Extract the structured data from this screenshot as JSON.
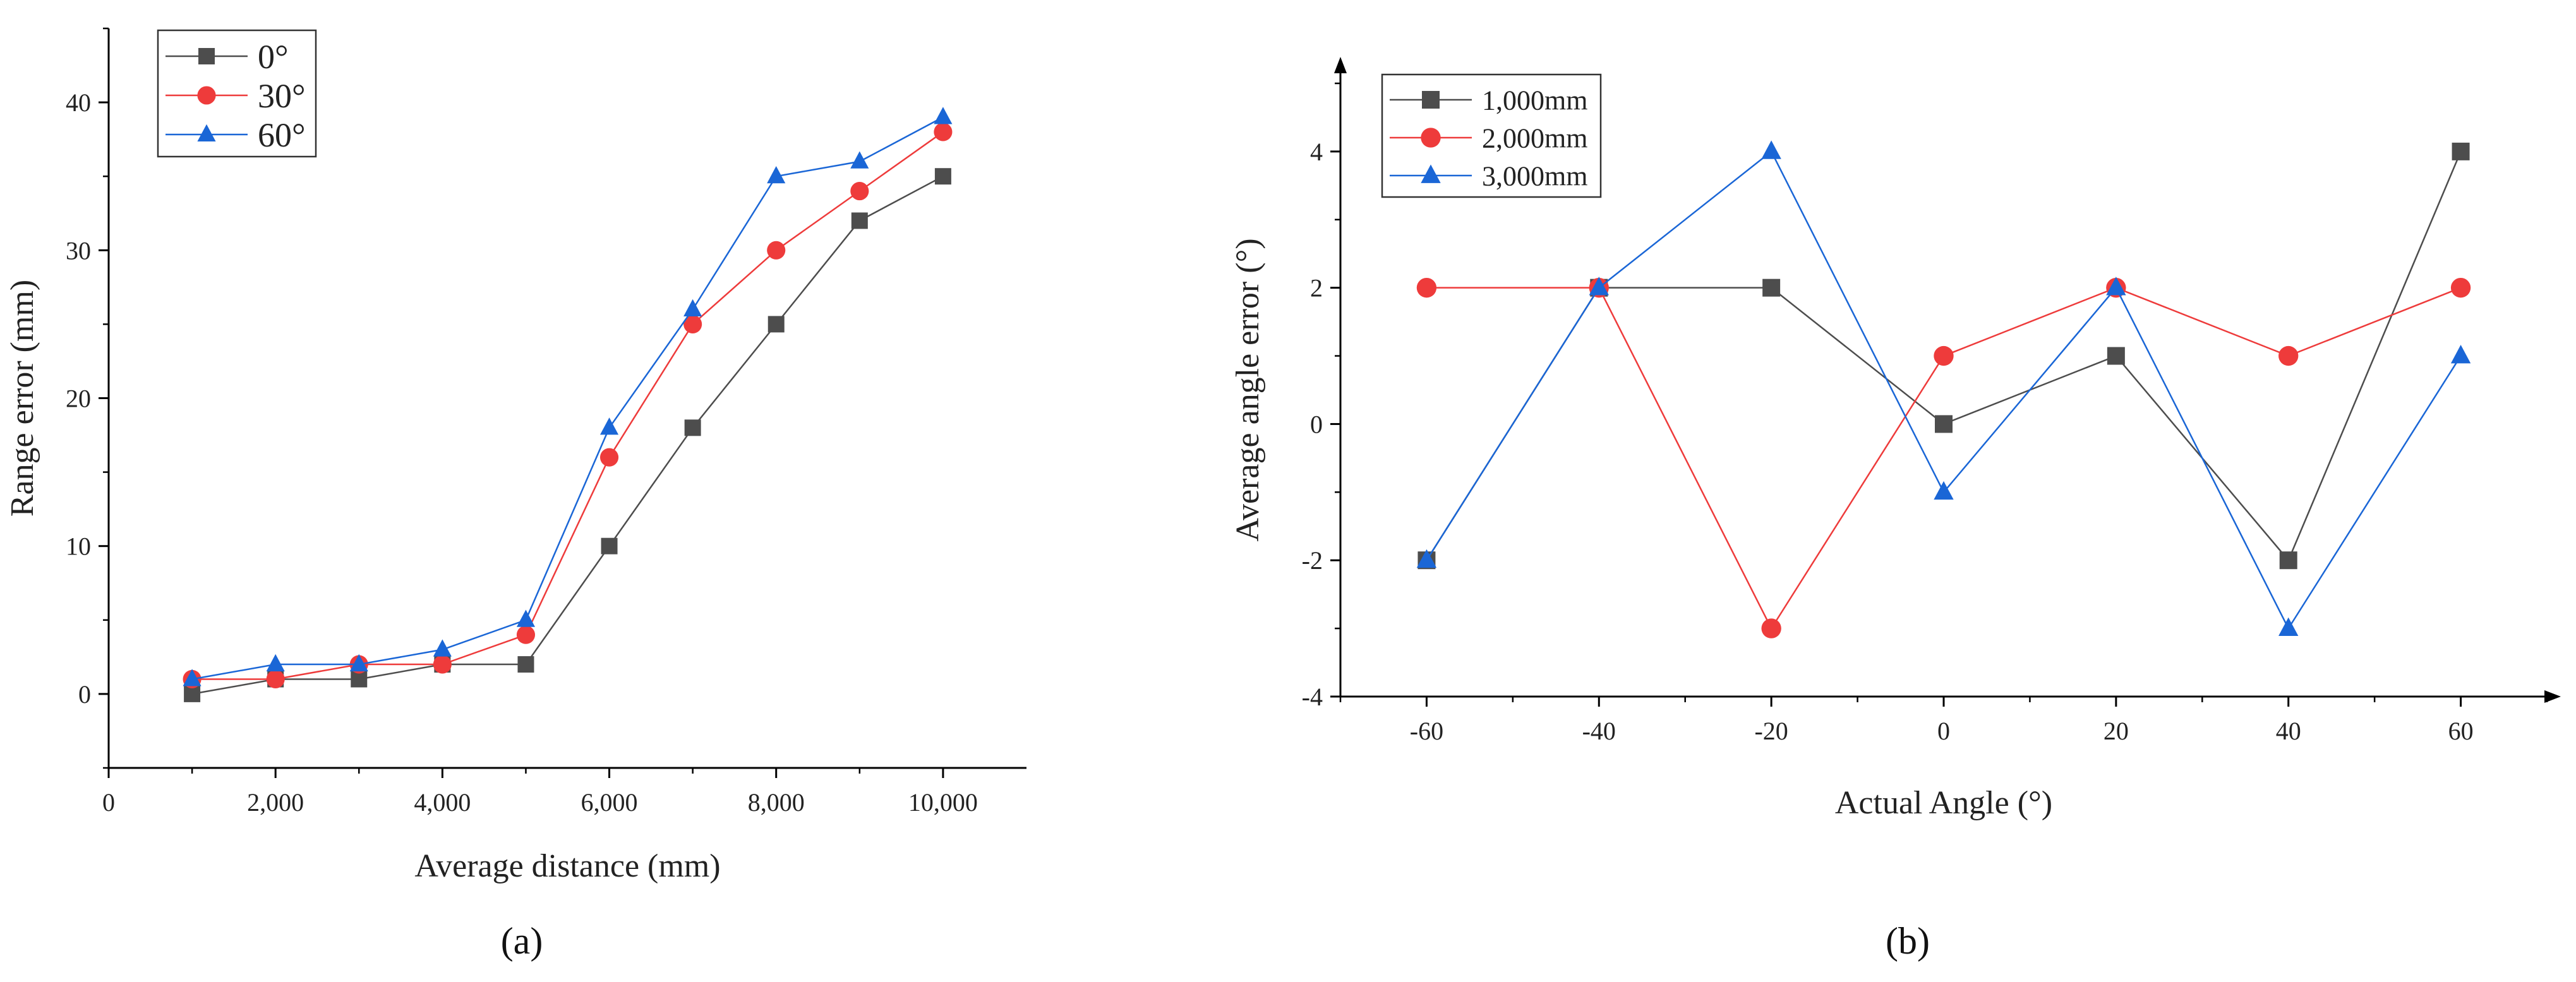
{
  "chart_data": [
    {
      "type": "line",
      "panel_label": "(a)",
      "xlabel": "Average distance (mm)",
      "ylabel": "Range error (mm)",
      "xlim": [
        0,
        11000
      ],
      "ylim": [
        -5,
        45
      ],
      "xticks": [
        0,
        2000,
        4000,
        6000,
        8000,
        10000
      ],
      "xtick_labels": [
        "0",
        "2,000",
        "4,000",
        "6,000",
        "8,000",
        "10,000"
      ],
      "yticks": [
        0,
        10,
        20,
        30,
        40
      ],
      "ytick_labels": [
        "0",
        "10",
        "20",
        "30",
        "40"
      ],
      "grid": false,
      "legend_position": "top-left",
      "x": [
        1000,
        2000,
        3000,
        4000,
        5000,
        6000,
        7000,
        8000,
        9000,
        10000
      ],
      "series": [
        {
          "name": "0°",
          "values": [
            0,
            1,
            1,
            2,
            2,
            10,
            18,
            25,
            32,
            35
          ],
          "color": "#4d4d4d",
          "marker": "square"
        },
        {
          "name": "30°",
          "values": [
            1,
            1,
            2,
            2,
            4,
            16,
            25,
            30,
            34,
            38
          ],
          "color": "#ee3b3b",
          "marker": "circle"
        },
        {
          "name": "60°",
          "values": [
            1,
            2,
            2,
            3,
            5,
            18,
            26,
            35,
            36,
            39
          ],
          "color": "#1a66d6",
          "marker": "triangle"
        }
      ]
    },
    {
      "type": "line",
      "panel_label": "(b)",
      "xlabel": "Actual Angle (°)",
      "ylabel": "Average angle error (°)",
      "xlim": [
        -70,
        70
      ],
      "ylim": [
        -4,
        5
      ],
      "xticks": [
        -60,
        -40,
        -20,
        0,
        20,
        40,
        60
      ],
      "xtick_labels": [
        "-60",
        "-40",
        "-20",
        "0",
        "20",
        "40",
        "60"
      ],
      "yticks": [
        -4,
        -2,
        0,
        2,
        4
      ],
      "ytick_labels": [
        "-4",
        "-2",
        "0",
        "2",
        "4"
      ],
      "grid": false,
      "legend_position": "top-left",
      "x": [
        -60,
        -40,
        -20,
        0,
        20,
        40,
        60
      ],
      "series": [
        {
          "name": "1,000mm",
          "values": [
            -2,
            2,
            2,
            0,
            1,
            -2,
            4
          ],
          "color": "#4d4d4d",
          "marker": "square"
        },
        {
          "name": "2,000mm",
          "values": [
            2,
            2,
            -3,
            1,
            2,
            1,
            2
          ],
          "color": "#ee3b3b",
          "marker": "circle"
        },
        {
          "name": "3,000mm",
          "values": [
            -2,
            2,
            4,
            -1,
            2,
            -3,
            1
          ],
          "color": "#1a66d6",
          "marker": "triangle"
        }
      ]
    }
  ]
}
